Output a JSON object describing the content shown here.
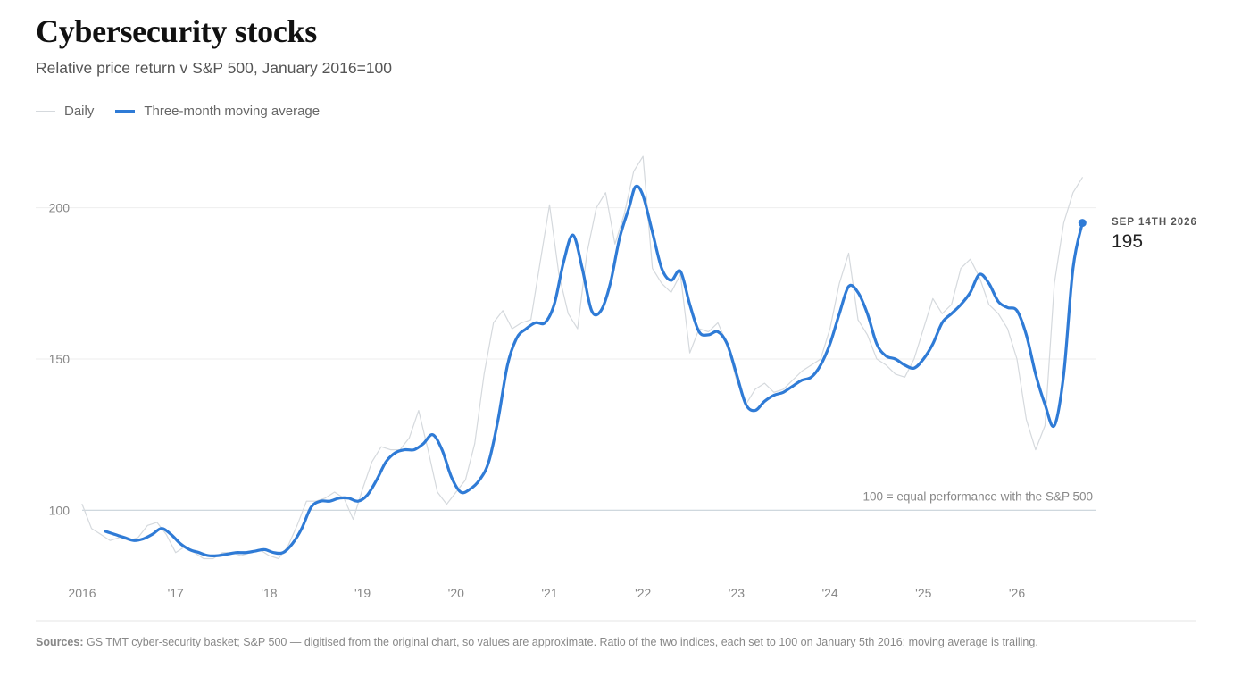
{
  "header": {
    "title": "Cybersecurity stocks",
    "subtitle": "Relative price return v S&P 500, January 2016=100"
  },
  "legend": {
    "items": [
      {
        "label": "Daily",
        "color": "#d5d9dd"
      },
      {
        "label": "Three-month moving average",
        "color": "#2f7bd6"
      }
    ]
  },
  "footer": {
    "sources_label": "Sources:",
    "sources_text": " GS TMT cyber-security basket; S&P 500 — digitised from the original chart, so values are approximate. Ratio of the two indices, each set to 100 on January 5th 2016; moving average is trailing."
  },
  "colors": {
    "accent": "#2f7bd6",
    "daily": "#d5d9dd",
    "gridline": "#eeeeee",
    "baseline": "#c8d2da"
  },
  "chart_data": {
    "type": "line",
    "title": "Cybersecurity stocks",
    "subtitle": "Relative price return v S&P 500, January 2016=100",
    "xlabel": "",
    "ylabel": "",
    "xlim": [
      2016.0,
      2026.85
    ],
    "ylim": [
      75,
      225
    ],
    "x_tick_labels": [
      {
        "x": 2016,
        "label": "2016"
      },
      {
        "x": 2017,
        "label": "'17"
      },
      {
        "x": 2018,
        "label": "'18"
      },
      {
        "x": 2019,
        "label": "'19"
      },
      {
        "x": 2020,
        "label": "'20"
      },
      {
        "x": 2021,
        "label": "'21"
      },
      {
        "x": 2022,
        "label": "'22"
      },
      {
        "x": 2023,
        "label": "'23"
      },
      {
        "x": 2024,
        "label": "'24"
      },
      {
        "x": 2025,
        "label": "'25"
      },
      {
        "x": 2026,
        "label": "'26"
      }
    ],
    "y_ticks": [
      100,
      150,
      200
    ],
    "grid": true,
    "legend_position": "top-left",
    "reference_line": {
      "y": 100,
      "label": "100 = equal performance with the S&P 500"
    },
    "end_annotation": {
      "date_label": "SEP 14TH 2026",
      "value_label": "195",
      "x": 2026.7,
      "y": 195
    },
    "series": [
      {
        "name": "Daily",
        "x": [
          2016.0,
          2016.1,
          2016.2,
          2016.3,
          2016.4,
          2016.5,
          2016.6,
          2016.7,
          2016.8,
          2016.9,
          2017.0,
          2017.1,
          2017.2,
          2017.3,
          2017.4,
          2017.5,
          2017.6,
          2017.7,
          2017.8,
          2017.9,
          2018.0,
          2018.1,
          2018.2,
          2018.3,
          2018.4,
          2018.5,
          2018.6,
          2018.7,
          2018.8,
          2018.9,
          2019.0,
          2019.1,
          2019.2,
          2019.3,
          2019.4,
          2019.5,
          2019.6,
          2019.7,
          2019.8,
          2019.9,
          2020.0,
          2020.1,
          2020.2,
          2020.3,
          2020.4,
          2020.5,
          2020.6,
          2020.7,
          2020.8,
          2020.9,
          2021.0,
          2021.1,
          2021.2,
          2021.3,
          2021.4,
          2021.5,
          2021.6,
          2021.7,
          2021.8,
          2021.9,
          2022.0,
          2022.1,
          2022.2,
          2022.3,
          2022.4,
          2022.5,
          2022.6,
          2022.7,
          2022.8,
          2022.9,
          2023.0,
          2023.1,
          2023.2,
          2023.3,
          2023.4,
          2023.5,
          2023.6,
          2023.7,
          2023.8,
          2023.9,
          2024.0,
          2024.1,
          2024.2,
          2024.3,
          2024.4,
          2024.5,
          2024.6,
          2024.7,
          2024.8,
          2024.9,
          2025.0,
          2025.1,
          2025.2,
          2025.3,
          2025.4,
          2025.5,
          2025.6,
          2025.7,
          2025.8,
          2025.9,
          2026.0,
          2026.1,
          2026.2,
          2026.3,
          2026.4,
          2026.5,
          2026.6,
          2026.7
        ],
        "values": [
          102,
          94,
          92,
          90,
          91,
          90,
          91,
          95,
          96,
          92,
          86,
          88,
          86,
          84,
          84,
          86,
          86,
          85,
          86,
          87,
          85,
          84,
          88,
          95,
          103,
          103,
          104,
          106,
          104,
          97,
          107,
          116,
          121,
          120,
          120,
          124,
          133,
          120,
          106,
          102,
          106,
          110,
          122,
          145,
          162,
          166,
          160,
          162,
          163,
          182,
          201,
          178,
          165,
          160,
          185,
          200,
          205,
          188,
          198,
          212,
          217,
          180,
          175,
          172,
          178,
          152,
          160,
          159,
          162,
          155,
          143,
          135,
          140,
          142,
          139,
          140,
          143,
          146,
          148,
          150,
          160,
          175,
          185,
          163,
          158,
          150,
          148,
          145,
          144,
          150,
          160,
          170,
          165,
          168,
          180,
          183,
          177,
          168,
          165,
          160,
          150,
          130,
          120,
          128,
          175,
          195,
          205,
          210
        ]
      },
      {
        "name": "Three-month moving average",
        "x": [
          2016.25,
          2016.35,
          2016.45,
          2016.55,
          2016.65,
          2016.75,
          2016.85,
          2016.95,
          2017.05,
          2017.15,
          2017.25,
          2017.35,
          2017.45,
          2017.55,
          2017.65,
          2017.75,
          2017.85,
          2017.95,
          2018.05,
          2018.15,
          2018.25,
          2018.35,
          2018.45,
          2018.55,
          2018.65,
          2018.75,
          2018.85,
          2018.95,
          2019.05,
          2019.15,
          2019.25,
          2019.35,
          2019.45,
          2019.55,
          2019.65,
          2019.75,
          2019.85,
          2019.95,
          2020.05,
          2020.15,
          2020.25,
          2020.35,
          2020.45,
          2020.55,
          2020.65,
          2020.75,
          2020.85,
          2020.95,
          2021.05,
          2021.15,
          2021.25,
          2021.35,
          2021.45,
          2021.55,
          2021.65,
          2021.75,
          2021.85,
          2021.92,
          2022.0,
          2022.1,
          2022.2,
          2022.3,
          2022.4,
          2022.5,
          2022.6,
          2022.7,
          2022.8,
          2022.9,
          2023.0,
          2023.1,
          2023.2,
          2023.3,
          2023.4,
          2023.5,
          2023.6,
          2023.7,
          2023.8,
          2023.9,
          2024.0,
          2024.1,
          2024.2,
          2024.3,
          2024.4,
          2024.5,
          2024.6,
          2024.7,
          2024.8,
          2024.9,
          2025.0,
          2025.1,
          2025.2,
          2025.3,
          2025.4,
          2025.5,
          2025.6,
          2025.7,
          2025.8,
          2025.9,
          2026.0,
          2026.1,
          2026.2,
          2026.3,
          2026.4,
          2026.5,
          2026.6,
          2026.7
        ],
        "values": [
          93,
          92,
          91,
          90,
          90.5,
          92,
          94,
          92,
          89,
          87,
          86,
          85,
          85,
          85.5,
          86,
          86,
          86.5,
          87,
          86,
          86,
          89,
          94,
          101,
          103,
          103,
          104,
          104,
          103,
          105,
          110,
          116,
          119,
          120,
          120,
          122,
          125,
          120,
          111,
          106,
          107,
          110,
          116,
          130,
          148,
          157,
          160,
          162,
          162,
          168,
          182,
          191,
          180,
          166,
          166,
          175,
          190,
          200,
          207,
          204,
          192,
          180,
          176,
          179,
          168,
          159,
          158,
          159,
          155,
          145,
          135,
          133,
          136,
          138,
          139,
          141,
          143,
          144,
          148,
          155,
          165,
          174,
          172,
          165,
          155,
          151,
          150,
          148,
          147,
          150,
          155,
          162,
          165,
          168,
          172,
          178,
          175,
          169,
          167,
          166,
          158,
          145,
          135,
          128,
          145,
          180,
          195
        ]
      }
    ]
  }
}
